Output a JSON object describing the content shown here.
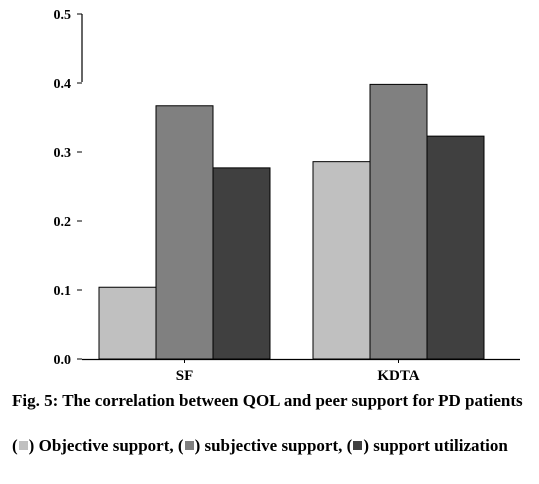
{
  "chart_data": {
    "type": "bar",
    "categories": [
      "SF",
      "KDTA"
    ],
    "series": [
      {
        "name": "Objective support",
        "color": "#c0c0c0",
        "values": [
          0.104,
          0.286
        ]
      },
      {
        "name": "subjective support",
        "color": "#808080",
        "values": [
          0.367,
          0.398
        ]
      },
      {
        "name": "support utilization",
        "color": "#404040",
        "values": [
          0.277,
          0.323
        ]
      }
    ],
    "ylim": [
      0,
      0.5
    ],
    "yticks": [
      "0.0",
      "0.1",
      "0.2",
      "0.3",
      "0.4",
      "0.5"
    ],
    "grid": false
  },
  "caption": {
    "title": "Fig. 5: The correlation between QOL and peer support for PD patients",
    "legend_items": [
      "Objective support,",
      "subjective support,",
      "support utilization"
    ]
  }
}
